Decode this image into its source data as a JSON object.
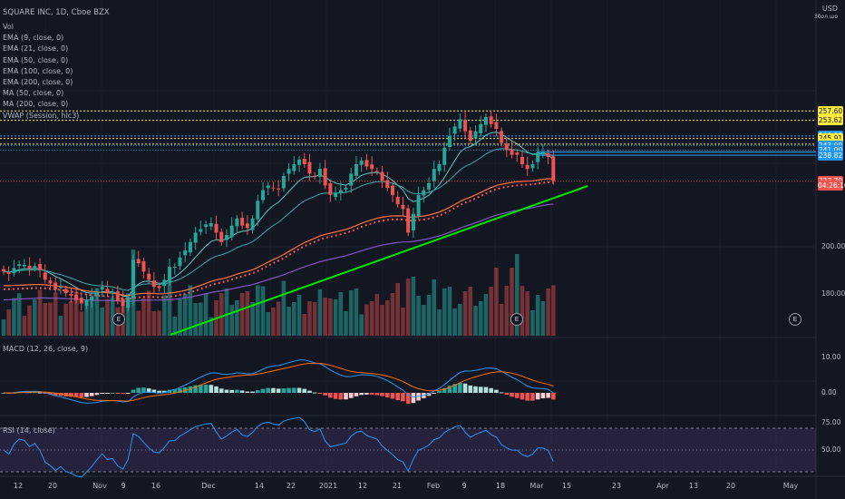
{
  "header": {
    "symbol_line": "SQUARE INC, 1D, Cboe BZX",
    "currency": "USD",
    "currency_sub": "3бол.шо"
  },
  "legend": [
    "Vol",
    "EMA (9, close, 0)",
    "EMA (21, close, 0)",
    "EMA (50, close, 0)",
    "EMA (100, close, 0)",
    "EMA (200, close, 0)",
    "MA (50, close, 0)",
    "MA (200, close, 0)",
    "VWAP (Session, hlc3)"
  ],
  "panes": {
    "macd_label": "MACD (12, 26, close, 9)",
    "rsi_label": "RSI (14, close)"
  },
  "price_tags": [
    {
      "label": "257.60",
      "value": 257.6,
      "bg": "#ffeb3b",
      "fg": "#131722"
    },
    {
      "label": "253.62",
      "value": 253.62,
      "bg": "#ffeb3b",
      "fg": "#131722"
    },
    {
      "label": "246.99",
      "value": 246.99,
      "bg": "#2196f3",
      "fg": "#ffffff"
    },
    {
      "label": "245.91",
      "value": 245.91,
      "bg": "#ffeb3b",
      "fg": "#131722"
    },
    {
      "label": "243.51",
      "value": 243.51,
      "bg": "#ffeb3b",
      "fg": "#131722"
    },
    {
      "label": "243.00",
      "value": 243.0,
      "bg": "#2196f3",
      "fg": "#ffffff"
    },
    {
      "label": "241.00",
      "value": 241.0,
      "bg": "#2196f3",
      "fg": "#ffffff"
    },
    {
      "label": "238.82",
      "value": 238.82,
      "bg": "#2196f3",
      "fg": "#ffffff"
    },
    {
      "label": "227.79",
      "value": 227.79,
      "bg": "#ef5350",
      "fg": "#ffffff"
    },
    {
      "label": "04:26:16",
      "value": 225.9,
      "bg": "#ef5350",
      "fg": "#ffffff"
    }
  ],
  "price_axis": [
    {
      "label": "200.00",
      "value": 200
    },
    {
      "label": "180.00",
      "value": 180
    }
  ],
  "macd_axis": [
    {
      "label": "10.00",
      "value": 10
    },
    {
      "label": "0.00",
      "value": 0
    }
  ],
  "rsi_axis": [
    {
      "label": "75.00",
      "value": 75
    },
    {
      "label": "50.00",
      "value": 50
    }
  ],
  "x_axis": [
    "12",
    "20",
    "Nov",
    "9",
    "16",
    "Dec",
    "14",
    "22",
    "2021",
    "12",
    "21",
    "Feb",
    "9",
    "18",
    "Mar",
    "15",
    "23",
    "Apr",
    "13",
    "20",
    "May"
  ],
  "earnings_badges": [
    "E",
    "E",
    "E"
  ],
  "colors": {
    "up": "#26a69a",
    "down": "#ef5350",
    "bg": "#131722",
    "trend": "#00e600",
    "hline": "#ffeb3b",
    "blue": "#2196f3"
  },
  "chart_data": {
    "type": "candlestick",
    "price_range": [
      170,
      270
    ],
    "closes": [
      189.5,
      188.5,
      191.0,
      192.6,
      192.3,
      190.8,
      191.8,
      190.0,
      186.0,
      184.5,
      182.0,
      183.0,
      180.3,
      179.3,
      177.5,
      176.0,
      177.5,
      179.0,
      181.0,
      183.0,
      180.5,
      180.8,
      177.0,
      175.0,
      178.5,
      194.5,
      193.0,
      189.5,
      186.0,
      183.0,
      182.5,
      186.0,
      191.5,
      191.5,
      195.5,
      198.5,
      202.0,
      206.0,
      207.5,
      209.5,
      210.0,
      206.0,
      202.0,
      205.0,
      209.0,
      212.0,
      209.0,
      208.0,
      212.0,
      219.5,
      224.0,
      226.0,
      225.0,
      224.5,
      230.0,
      233.0,
      235.0,
      237.0,
      235.0,
      231.0,
      230.0,
      233.0,
      226.0,
      222.0,
      223.0,
      224.0,
      225.0,
      231.0,
      235.0,
      236.5,
      234.0,
      233.0,
      232.0,
      228.0,
      225.0,
      222.0,
      218.0,
      216.0,
      206.0,
      214.0,
      222.0,
      224.0,
      227.0,
      233.0,
      235.0,
      242.0,
      247.0,
      251.0,
      254.0,
      249.0,
      245.0,
      249.0,
      252.0,
      255.0,
      252.0,
      250.0,
      244.0,
      241.0,
      239.0,
      239.0,
      235.0,
      233.0,
      235.0,
      240.0,
      240.0,
      238.0,
      227.8
    ]
  }
}
